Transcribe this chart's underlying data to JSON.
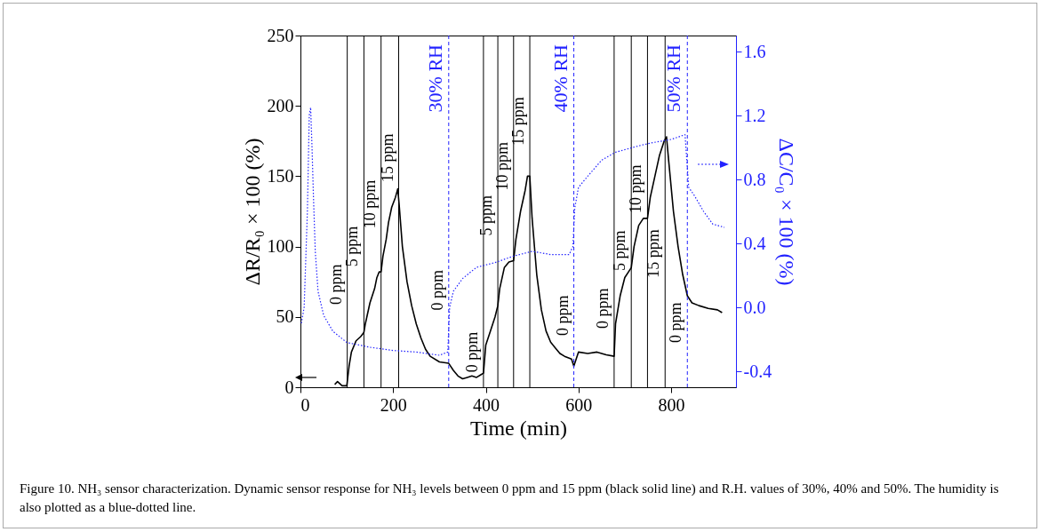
{
  "chart_data": {
    "type": "line",
    "xlabel": "Time (min)",
    "ylabel": "ΔR/R₀ × 100 (%)",
    "y2label": "ΔC/C₀ × 100 (%)",
    "xlim": [
      0,
      940
    ],
    "xticks": [
      0,
      200,
      400,
      600,
      800
    ],
    "ylim": [
      0,
      250
    ],
    "yticks": [
      0,
      50,
      100,
      150,
      200,
      250
    ],
    "y2lim": [
      -0.5,
      1.7
    ],
    "y2ticks": [
      -0.4,
      {
        "value": 0,
        "label": "0.0"
      },
      0.4,
      0.8,
      1.2,
      1.6
    ],
    "series": [
      {
        "color": "#000000",
        "line_style": "solid",
        "x": [
          74,
          80,
          90,
          100,
          105,
          110,
          120,
          130,
          137,
          140,
          150,
          160,
          165,
          170,
          174,
          178,
          185,
          190,
          197,
          205,
          210,
          213,
          220,
          230,
          240,
          250,
          260,
          270,
          280,
          300,
          320,
          330,
          340,
          350,
          360,
          370,
          380,
          390,
          395,
          400,
          410,
          420,
          426,
          430,
          440,
          450,
          460,
          465,
          475,
          485,
          490,
          495,
          500,
          510,
          520,
          530,
          540,
          550,
          560,
          570,
          585,
          590,
          600,
          620,
          640,
          660,
          677,
          680,
          690,
          700,
          714,
          720,
          730,
          740,
          749,
          755,
          765,
          775,
          785,
          790,
          795,
          805,
          815,
          825,
          835,
          845,
          860,
          880,
          900,
          910
        ],
        "values": [
          2,
          4,
          1,
          1,
          15,
          25,
          33,
          36,
          39,
          45,
          60,
          70,
          78,
          82,
          82,
          93,
          105,
          117,
          128,
          135,
          141,
          130,
          100,
          75,
          58,
          45,
          35,
          27,
          22,
          18,
          17,
          12,
          8,
          6,
          7,
          8,
          7,
          9,
          10,
          30,
          40,
          50,
          58,
          70,
          85,
          89,
          90,
          105,
          125,
          140,
          150,
          150,
          120,
          80,
          55,
          40,
          32,
          28,
          24,
          22,
          20,
          15,
          25,
          24,
          25,
          23,
          22,
          45,
          65,
          78,
          85,
          100,
          115,
          120,
          120,
          135,
          150,
          165,
          175,
          178,
          160,
          125,
          100,
          80,
          65,
          60,
          58,
          56,
          55,
          53
        ]
      },
      {
        "color": "#2222ff",
        "line_style": "dotted",
        "axis": "y2",
        "x": [
          2,
          8,
          15,
          19,
          22,
          25,
          28,
          32,
          38,
          50,
          70,
          100,
          150,
          200,
          250,
          300,
          318,
          322,
          330,
          350,
          380,
          420,
          460,
          500,
          540,
          580,
          588,
          592,
          600,
          620,
          650,
          680,
          730,
          760,
          800,
          830,
          838,
          850,
          870,
          890,
          915
        ],
        "values": [
          -0.1,
          0.0,
          0.6,
          1.2,
          1.25,
          1.0,
          0.7,
          0.35,
          0.1,
          -0.05,
          -0.15,
          -0.22,
          -0.25,
          -0.27,
          -0.28,
          -0.3,
          -0.28,
          0.0,
          0.1,
          0.18,
          0.25,
          0.28,
          0.32,
          0.35,
          0.33,
          0.33,
          0.38,
          0.62,
          0.75,
          0.82,
          0.92,
          0.97,
          1.01,
          1.03,
          1.05,
          1.08,
          0.75,
          0.7,
          0.6,
          0.52,
          0.5
        ]
      }
    ],
    "ref_lines": [
      {
        "axis": "x",
        "value": 101,
        "color": "#000000",
        "line_style": "solid"
      },
      {
        "axis": "x",
        "value": 137,
        "color": "#000000",
        "line_style": "solid"
      },
      {
        "axis": "x",
        "value": 174,
        "color": "#000000",
        "line_style": "solid"
      },
      {
        "axis": "x",
        "value": 212,
        "color": "#000000",
        "line_style": "solid"
      },
      {
        "axis": "x",
        "value": 320,
        "label": "30% RH",
        "color": "#2222ff",
        "line_style": "dashed"
      },
      {
        "axis": "x",
        "value": 395,
        "color": "#000000",
        "line_style": "solid"
      },
      {
        "axis": "x",
        "value": 426,
        "color": "#000000",
        "line_style": "solid"
      },
      {
        "axis": "x",
        "value": 460,
        "color": "#000000",
        "line_style": "solid"
      },
      {
        "axis": "x",
        "value": 495,
        "color": "#000000",
        "line_style": "solid"
      },
      {
        "axis": "x",
        "value": 590,
        "label": "40% RH",
        "color": "#2222ff",
        "line_style": "dashed"
      },
      {
        "axis": "x",
        "value": 677,
        "color": "#000000",
        "line_style": "solid"
      },
      {
        "axis": "x",
        "value": 714,
        "color": "#000000",
        "line_style": "solid"
      },
      {
        "axis": "x",
        "value": 749,
        "color": "#000000",
        "line_style": "solid"
      },
      {
        "axis": "x",
        "value": 787,
        "color": "#000000",
        "line_style": "solid"
      },
      {
        "axis": "x",
        "value": 835,
        "label": "50% RH",
        "color": "#2222ff",
        "line_style": "dashed"
      }
    ],
    "annotations": [
      {
        "text": "0 ppm",
        "x": 101,
        "y": 73
      },
      {
        "text": "5 ppm",
        "x": 137,
        "y": 100
      },
      {
        "text": "10 ppm",
        "x": 174,
        "y": 130
      },
      {
        "text": "15 ppm",
        "x": 212,
        "y": 163
      },
      {
        "text": "0 ppm",
        "x": 320,
        "y": 69
      },
      {
        "text": "0 ppm",
        "x": 395,
        "y": 25
      },
      {
        "text": "5 ppm",
        "x": 426,
        "y": 122
      },
      {
        "text": "10 ppm",
        "x": 460,
        "y": 157
      },
      {
        "text": "15 ppm",
        "x": 495,
        "y": 189
      },
      {
        "text": "0 ppm",
        "x": 590,
        "y": 51
      },
      {
        "text": "0 ppm",
        "x": 677,
        "y": 56
      },
      {
        "text": "5 ppm",
        "x": 714,
        "y": 97
      },
      {
        "text": "10 ppm",
        "x": 749,
        "y": 141
      },
      {
        "text": "15 ppm",
        "x": 787,
        "y": 95
      },
      {
        "text": "0 ppm",
        "x": 835,
        "y": 46
      },
      "Figure 10. NH₃ sensor characterization. Dynamic sensor response for NH₃ levels between 0 ppm and 15 ppm (black solid line) and R.H. values of 30%, 40% and 50%. The humidity is also plotted as a blue-dotted line."
    ]
  }
}
